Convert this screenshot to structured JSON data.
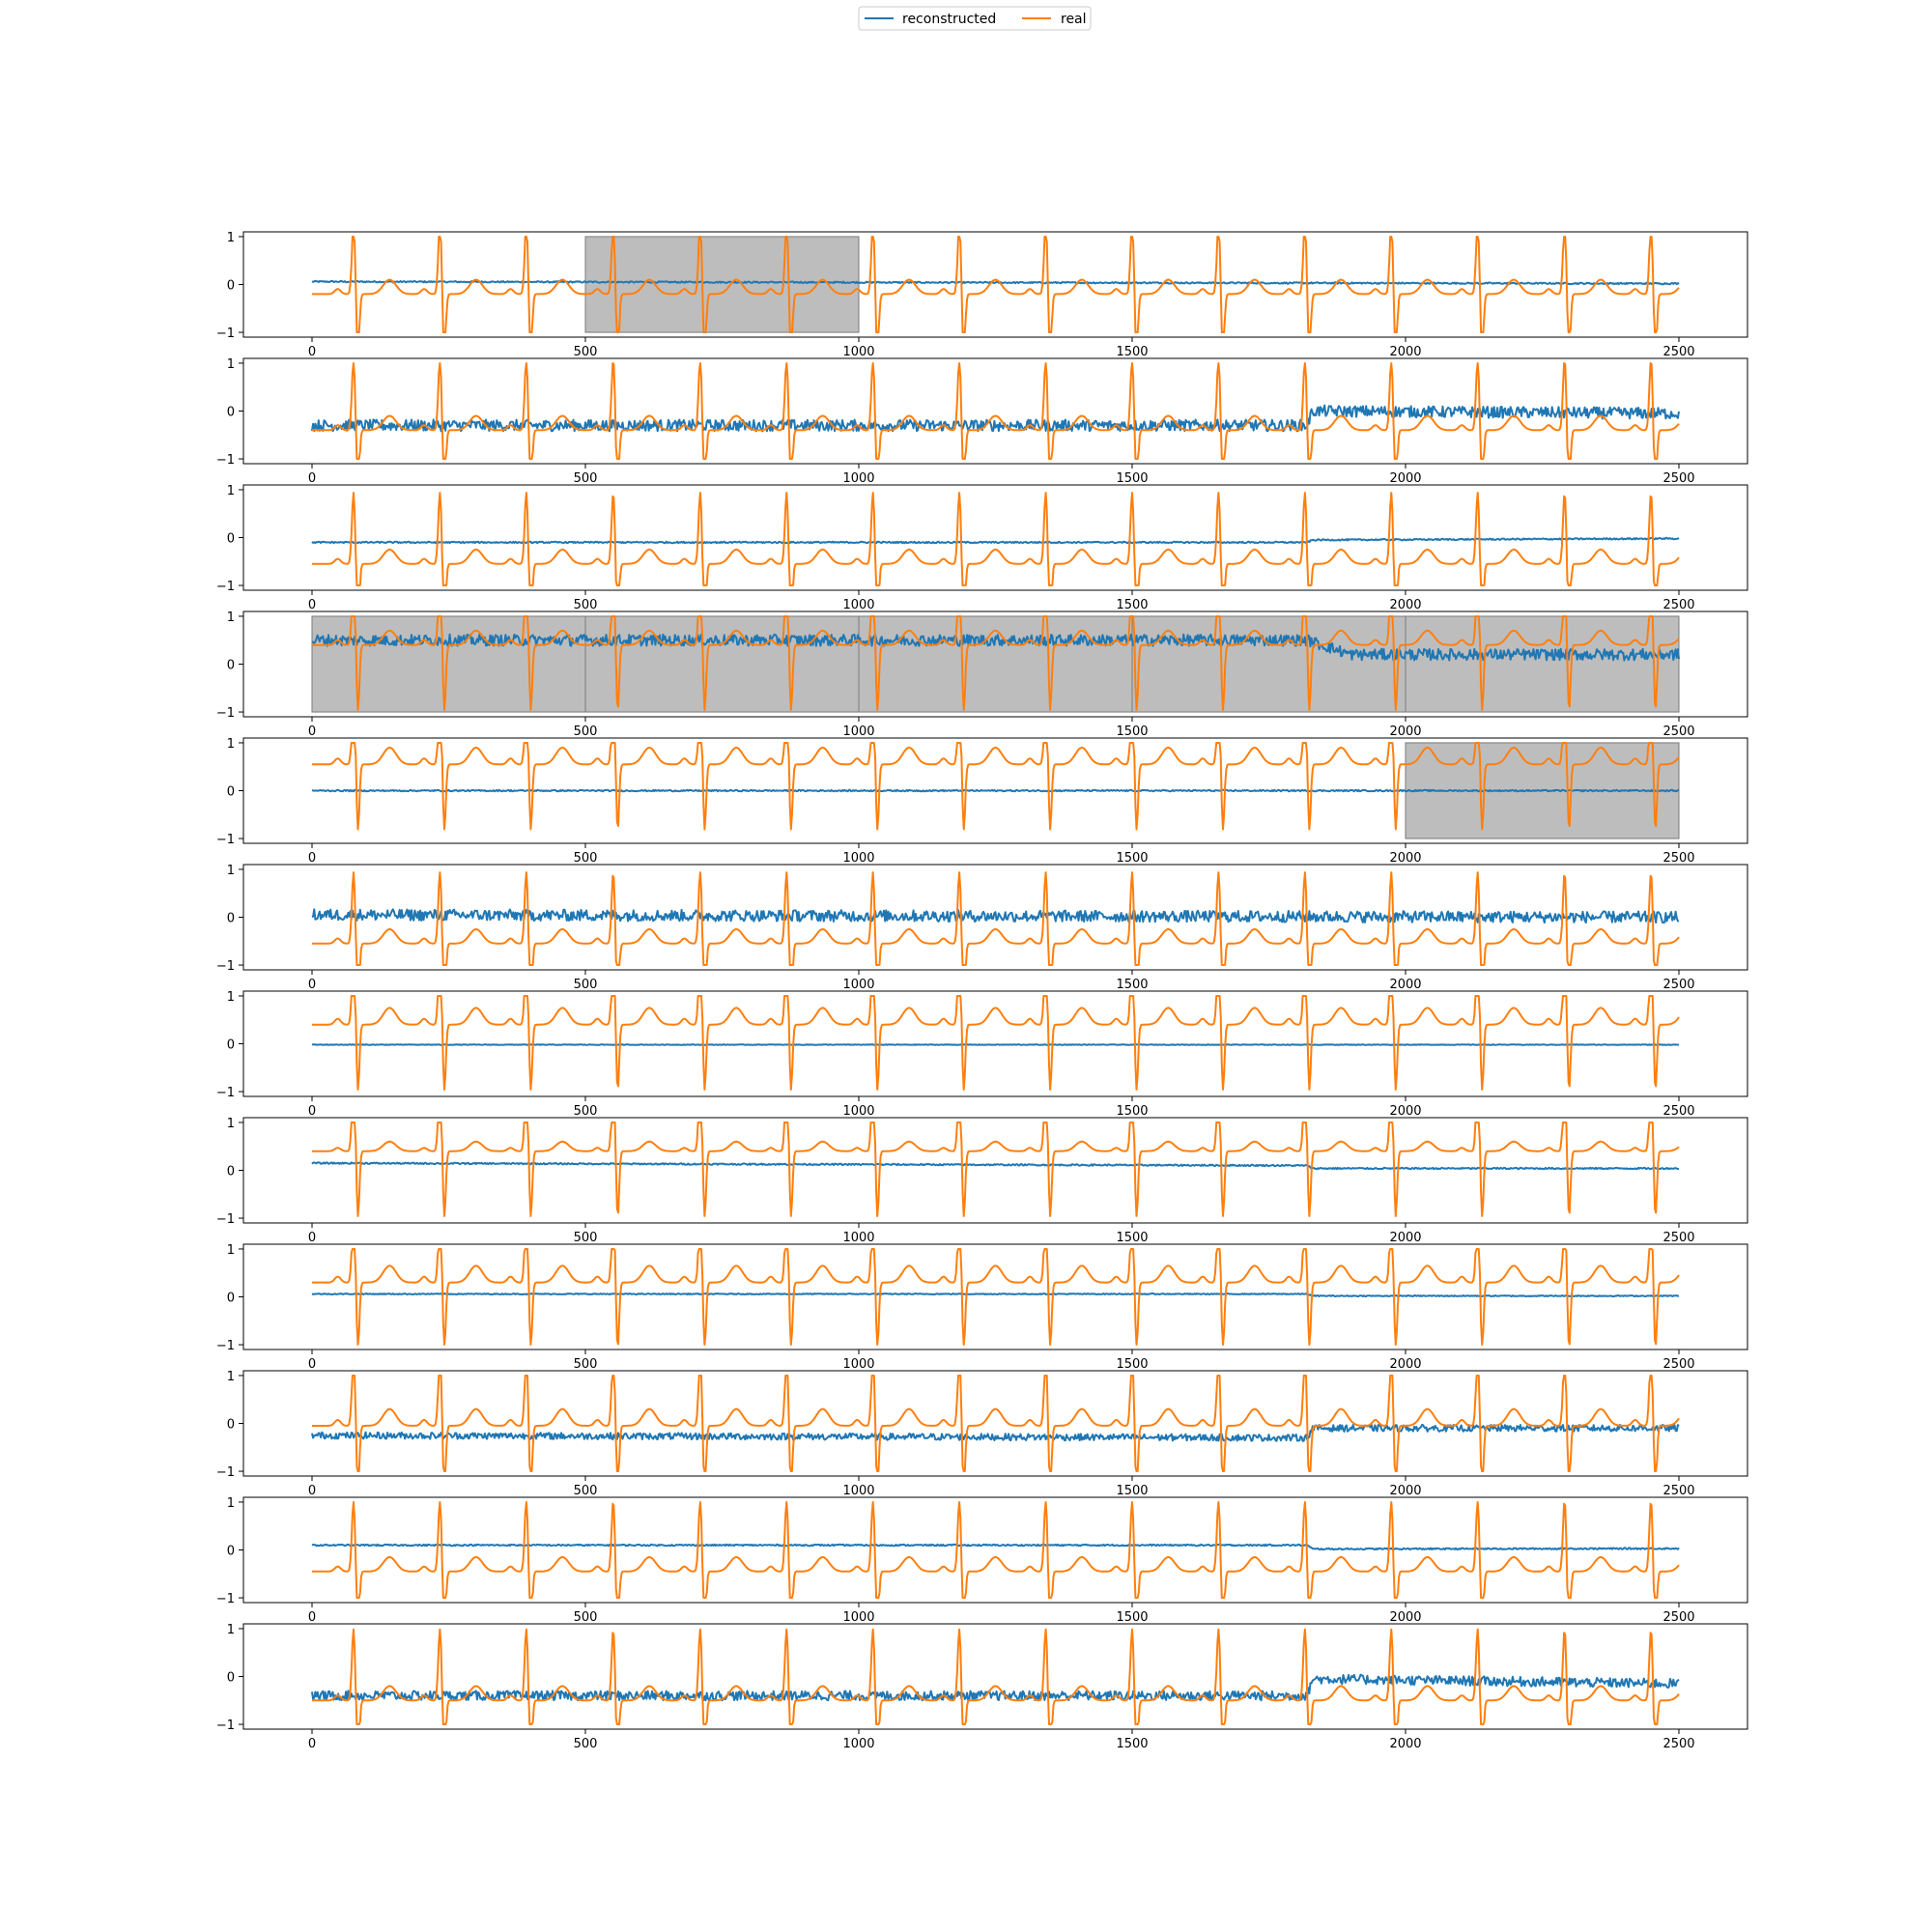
{
  "legend": {
    "placement": "top-center",
    "entries": [
      {
        "label": "reconstructed",
        "color": "#1f77b4"
      },
      {
        "label": "real",
        "color": "#ff7f0e"
      }
    ]
  },
  "chart_data": {
    "type": "line",
    "xlim": [
      0,
      2500
    ],
    "x_ticks": [
      0,
      500,
      1000,
      1500,
      2000,
      2500
    ],
    "y_ticks": [
      1,
      0,
      -1
    ],
    "ylim": [
      -1.1,
      1.1
    ],
    "grid": false,
    "series_names": [
      "reconstructed",
      "real"
    ],
    "beat_positions": [
      72,
      230,
      388,
      547,
      706,
      864,
      1022,
      1180,
      1338,
      1496,
      1654,
      1812,
      1970,
      2128,
      2287,
      2445
    ],
    "panels": [
      {
        "shaded": [
          [
            500,
            1000
          ]
        ],
        "recon_levels": [
          [
            0,
            0.06
          ],
          [
            2500,
            0.02
          ]
        ],
        "recon_noise": 0.015,
        "real_baseline": -0.2,
        "real_wave": 0.3
      },
      {
        "shaded": [],
        "recon_levels": [
          [
            0,
            -0.3
          ],
          [
            1820,
            -0.3
          ],
          [
            1830,
            0.0
          ],
          [
            2500,
            -0.05
          ]
        ],
        "recon_noise": 0.12,
        "real_baseline": -0.4,
        "real_wave": 0.3
      },
      {
        "shaded": [],
        "recon_levels": [
          [
            0,
            -0.1
          ],
          [
            1820,
            -0.1
          ],
          [
            1830,
            -0.05
          ],
          [
            2500,
            -0.02
          ]
        ],
        "recon_noise": 0.015,
        "real_baseline": -0.55,
        "real_wave": 0.3
      },
      {
        "shaded": [
          [
            0,
            500
          ],
          [
            500,
            1000
          ],
          [
            1000,
            1500
          ],
          [
            1500,
            2000
          ],
          [
            2000,
            2500
          ]
        ],
        "recon_levels": [
          [
            0,
            0.5
          ],
          [
            1820,
            0.5
          ],
          [
            1900,
            0.2
          ],
          [
            2500,
            0.2
          ]
        ],
        "recon_noise": 0.12,
        "real_baseline": 0.4,
        "real_wave": 0.3
      },
      {
        "shaded": [
          [
            2000,
            2500
          ]
        ],
        "recon_levels": [
          [
            0,
            0.0
          ],
          [
            2500,
            0.0
          ]
        ],
        "recon_noise": 0.015,
        "real_baseline": 0.55,
        "real_wave": 0.35
      },
      {
        "shaded": [],
        "recon_levels": [
          [
            0,
            0.05
          ],
          [
            2500,
            0.0
          ]
        ],
        "recon_noise": 0.12,
        "real_baseline": -0.55,
        "real_wave": 0.3
      },
      {
        "shaded": [],
        "recon_levels": [
          [
            0,
            -0.02
          ],
          [
            2500,
            -0.02
          ]
        ],
        "recon_noise": 0.006,
        "real_baseline": 0.4,
        "real_wave": 0.35
      },
      {
        "shaded": [],
        "recon_levels": [
          [
            0,
            0.15
          ],
          [
            1820,
            0.1
          ],
          [
            1830,
            0.04
          ],
          [
            2500,
            0.04
          ]
        ],
        "recon_noise": 0.015,
        "real_baseline": 0.4,
        "real_wave": 0.2
      },
      {
        "shaded": [],
        "recon_levels": [
          [
            0,
            0.06
          ],
          [
            1820,
            0.06
          ],
          [
            1830,
            0.02
          ],
          [
            2500,
            0.02
          ]
        ],
        "recon_noise": 0.01,
        "real_baseline": 0.3,
        "real_wave": 0.35
      },
      {
        "shaded": [],
        "recon_levels": [
          [
            0,
            -0.25
          ],
          [
            1820,
            -0.3
          ],
          [
            1830,
            -0.1
          ],
          [
            2500,
            -0.1
          ]
        ],
        "recon_noise": 0.07,
        "real_baseline": -0.05,
        "real_wave": 0.35
      },
      {
        "shaded": [],
        "recon_levels": [
          [
            0,
            0.1
          ],
          [
            1820,
            0.1
          ],
          [
            1830,
            0.02
          ],
          [
            2500,
            0.03
          ]
        ],
        "recon_noise": 0.015,
        "real_baseline": -0.45,
        "real_wave": 0.3
      },
      {
        "shaded": [],
        "recon_levels": [
          [
            0,
            -0.4
          ],
          [
            1820,
            -0.4
          ],
          [
            1830,
            -0.05
          ],
          [
            2500,
            -0.15
          ]
        ],
        "recon_noise": 0.1,
        "real_baseline": -0.5,
        "real_wave": 0.3
      }
    ]
  }
}
